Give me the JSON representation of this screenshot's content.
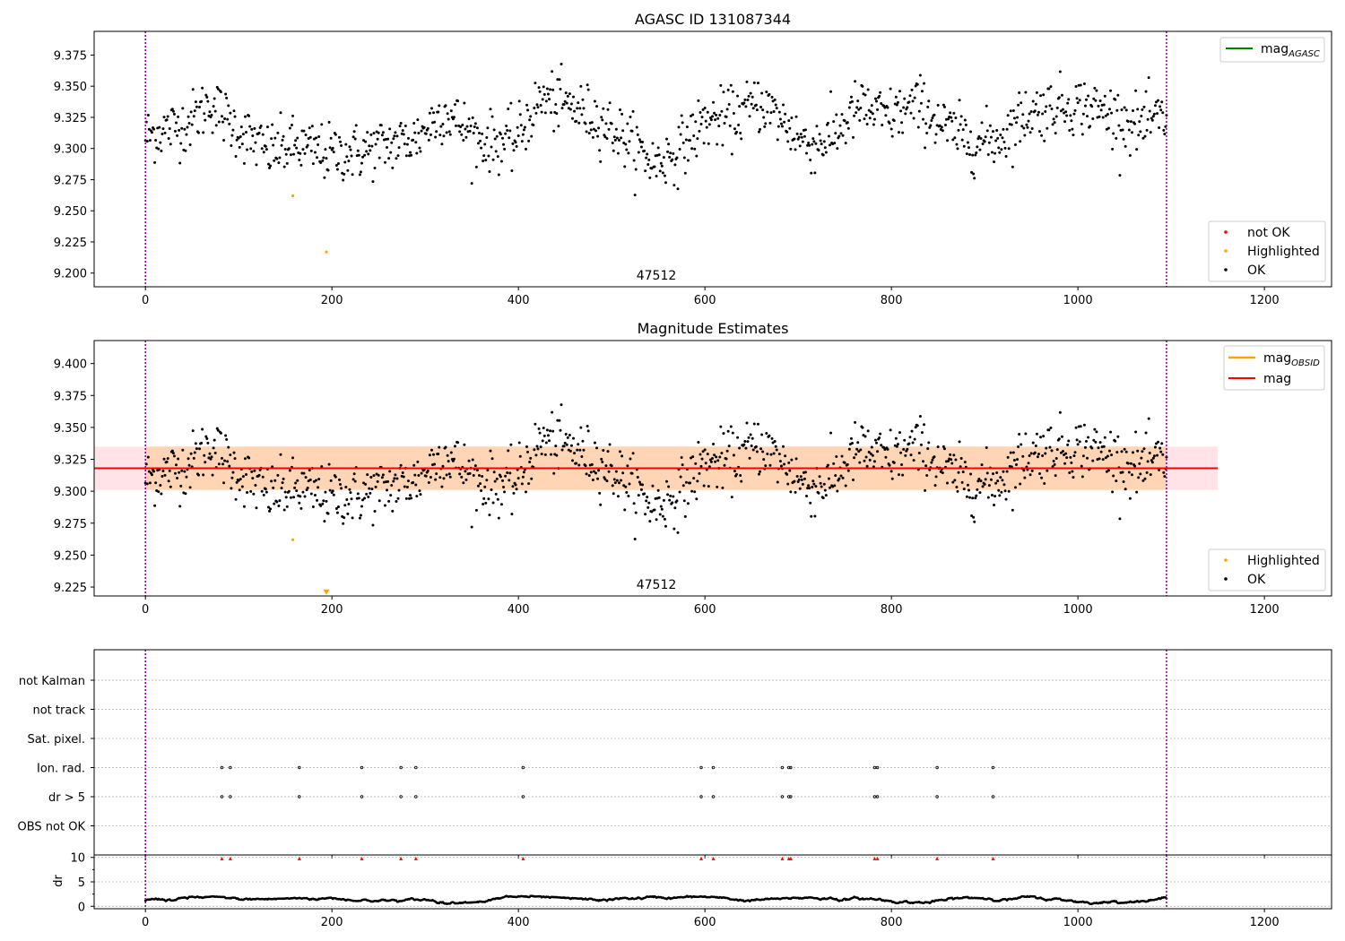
{
  "chart_data": [
    {
      "type": "scatter",
      "title": "AGASC ID 131087344",
      "xlim": [
        -55,
        1272
      ],
      "ylim": [
        9.189,
        9.394
      ],
      "xticks": [
        0,
        200,
        400,
        600,
        800,
        1000,
        1200
      ],
      "yticks": [
        9.2,
        9.225,
        9.25,
        9.275,
        9.3,
        9.325,
        9.35,
        9.375
      ],
      "ytick_labels": [
        "9.200",
        "9.225",
        "9.250",
        "9.275",
        "9.300",
        "9.325",
        "9.350",
        "9.375"
      ],
      "vlines": [
        0,
        1095
      ],
      "annotation": {
        "text": "47512",
        "x": 550,
        "y": 9.197
      },
      "legend_lines": [
        {
          "label": "mag",
          "sub": "AGASC",
          "color": "#008000"
        }
      ],
      "legend_points": [
        {
          "label": "not OK",
          "color": "#ff0000"
        },
        {
          "label": "Highlighted",
          "color": "#ffa500"
        },
        {
          "label": "OK",
          "color": "#000000"
        }
      ],
      "series": [
        {
          "name": "OK",
          "color": "#000000",
          "generated_from_trend": true
        },
        {
          "name": "Highlighted",
          "color": "#ffa500",
          "x": [
            158,
            194
          ],
          "y": [
            9.262,
            9.217
          ]
        }
      ],
      "trend": {
        "x": [
          0,
          25,
          45,
          70,
          95,
          130,
          160,
          195,
          230,
          260,
          290,
          320,
          360,
          395,
          425,
          455,
          490,
          520,
          545,
          570,
          600,
          630,
          660,
          680,
          710,
          735,
          765,
          795,
          830,
          860,
          890,
          915,
          945,
          975,
          1005,
          1035,
          1065,
          1095
        ],
        "y": [
          9.31,
          9.316,
          9.32,
          9.337,
          9.318,
          9.298,
          9.302,
          9.296,
          9.297,
          9.303,
          9.308,
          9.33,
          9.306,
          9.305,
          9.34,
          9.334,
          9.322,
          9.305,
          9.288,
          9.297,
          9.322,
          9.325,
          9.337,
          9.324,
          9.303,
          9.308,
          9.333,
          9.325,
          9.335,
          9.315,
          9.305,
          9.308,
          9.328,
          9.334,
          9.335,
          9.328,
          9.318,
          9.325
        ]
      }
    },
    {
      "type": "scatter",
      "title": "Magnitude Estimates",
      "xlim": [
        -55,
        1272
      ],
      "ylim": [
        9.218,
        9.418
      ],
      "xticks": [
        0,
        200,
        400,
        600,
        800,
        1000,
        1200
      ],
      "yticks": [
        9.225,
        9.25,
        9.275,
        9.3,
        9.325,
        9.35,
        9.375,
        9.4
      ],
      "ytick_labels": [
        "9.225",
        "9.250",
        "9.275",
        "9.300",
        "9.325",
        "9.350",
        "9.375",
        "9.400"
      ],
      "vlines": [
        0,
        1095
      ],
      "annotation": {
        "text": "47512",
        "x": 550,
        "y": 9.227
      },
      "mag_line": {
        "y": 9.318,
        "color": "#ff0000",
        "x0": -55,
        "x1": 1150
      },
      "mag_band": {
        "y0": 9.301,
        "y1": 9.335,
        "color": "#ffc0cb",
        "x0": -55,
        "x1": 1150
      },
      "obsid_band": {
        "y0": 9.301,
        "y1": 9.335,
        "color": "#ffa500",
        "x0": 0,
        "x1": 1095
      },
      "legend_lines": [
        {
          "label": "mag",
          "sub": "OBSID",
          "color": "#ffa500"
        },
        {
          "label": "mag",
          "sub": "",
          "color": "#ff0000"
        }
      ],
      "legend_points": [
        {
          "label": "Highlighted",
          "color": "#ffa500"
        },
        {
          "label": "OK",
          "color": "#000000"
        }
      ],
      "series": [
        {
          "name": "OK",
          "color": "#000000",
          "generated_from_trend": true
        },
        {
          "name": "Highlighted",
          "color": "#ffa500",
          "x": [
            158
          ],
          "y": [
            9.262
          ]
        },
        {
          "name": "Highlighted (below range)",
          "color": "#ffa500",
          "marker": "triangle-down",
          "x": [
            194
          ],
          "y": [
            9.221
          ]
        }
      ]
    },
    {
      "type": "scatter",
      "title": "",
      "xlim": [
        -55,
        1272
      ],
      "flag_rows": [
        "not Kalman",
        "not track",
        "Sat. pixel.",
        "Ion. rad.",
        "dr > 5",
        "OBS not OK"
      ],
      "flag_x": [
        82,
        91,
        165,
        232,
        274,
        290,
        405,
        596,
        609,
        683,
        690,
        692,
        782,
        785,
        849,
        909
      ],
      "flag_series": {
        "Ion. rad.": [
          82,
          91,
          165,
          232,
          274,
          290,
          405,
          596,
          609,
          683,
          690,
          692,
          782,
          785,
          849,
          909
        ],
        "dr > 5": [
          82,
          91,
          165,
          232,
          274,
          290,
          405,
          596,
          609,
          683,
          690,
          692,
          782,
          785,
          849,
          909
        ]
      },
      "vlines": [
        0,
        1095
      ]
    },
    {
      "type": "line",
      "title": "",
      "ylabel": "dr",
      "xlim": [
        -55,
        1272
      ],
      "ylim": [
        -0.5,
        10.5
      ],
      "xticks": [
        0,
        200,
        400,
        600,
        800,
        1000,
        1200
      ],
      "yticks": [
        0,
        5,
        10
      ],
      "vlines": [
        0,
        1095
      ],
      "dr_marker_x": [
        82,
        91,
        165,
        232,
        274,
        290,
        405,
        596,
        609,
        683,
        690,
        692,
        782,
        785,
        849,
        909
      ],
      "dr_marker_y": 9.8,
      "dr_range": [
        0.3,
        2.6
      ]
    }
  ]
}
